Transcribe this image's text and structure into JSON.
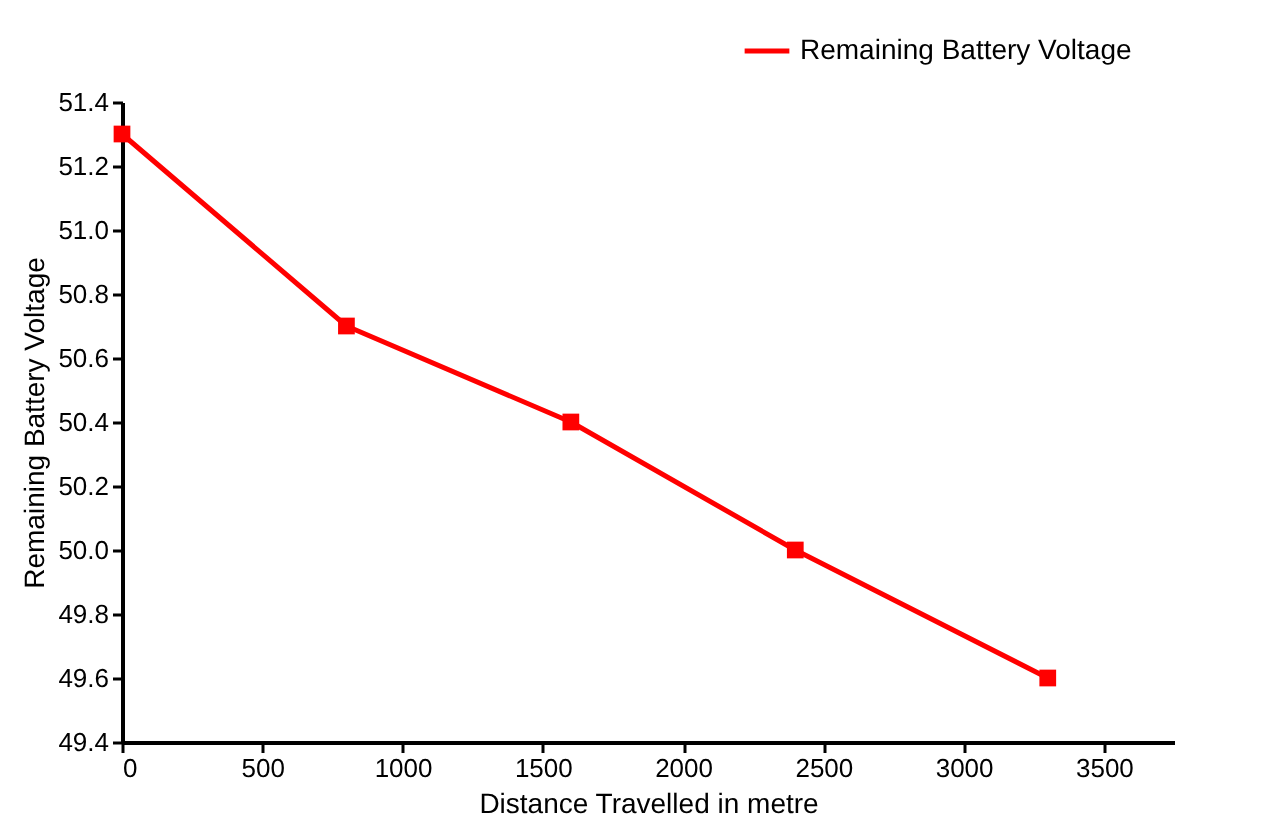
{
  "chart_data": {
    "type": "line",
    "xlabel": "Distance Travelled in metre",
    "ylabel": "Remaining Battery Voltage",
    "x": [
      0,
      800,
      1600,
      2400,
      3300
    ],
    "series": [
      {
        "name": "Remaining Battery Voltage",
        "color": "#ff0000",
        "values": [
          51.3,
          50.7,
          50.4,
          50.0,
          49.6
        ]
      }
    ],
    "xlim": [
      0,
      3750
    ],
    "xticks": [
      0,
      500,
      1000,
      1500,
      2000,
      2500,
      3000,
      3500
    ],
    "ylim": [
      49.4,
      51.4
    ],
    "yticks": [
      49.4,
      49.6,
      49.8,
      {
        "value": 50,
        "label": "50.0"
      },
      50.2,
      50.4,
      50.6,
      50.8,
      {
        "value": 51,
        "label": "51.0"
      },
      51.2,
      51.4
    ],
    "grid": false,
    "legend": "top right",
    "marker": "square",
    "line_style": "solid"
  }
}
